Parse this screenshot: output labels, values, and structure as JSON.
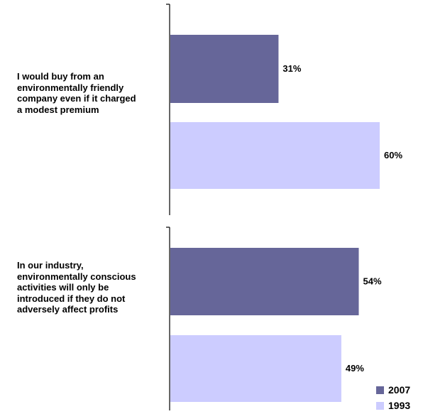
{
  "chart_data": {
    "type": "bar",
    "orientation": "horizontal",
    "categories": [
      "I would buy from an environmentally friendly company  even if it charged a modest premium",
      "In our industry, environmentally conscious activities will only be introduced if they do not adversely affect profits"
    ],
    "category_label_lines": [
      [
        "I would buy from an",
        "environmentally friendly",
        "company  even if it charged",
        "a modest premium"
      ],
      [
        "In our industry,",
        "environmentally conscious",
        "activities will only be",
        "introduced if they do not",
        "adversely affect profits"
      ]
    ],
    "series": [
      {
        "name": "2007",
        "values": [
          31,
          54
        ],
        "labels": [
          "31%",
          "54%"
        ],
        "color": "#666699"
      },
      {
        "name": "1993",
        "values": [
          60,
          49
        ],
        "labels": [
          "60%",
          "49%"
        ],
        "color": "#ccccff"
      }
    ],
    "xlim": [
      0,
      70
    ],
    "unit": "%",
    "grid": false,
    "legend_position": "bottom-right"
  }
}
